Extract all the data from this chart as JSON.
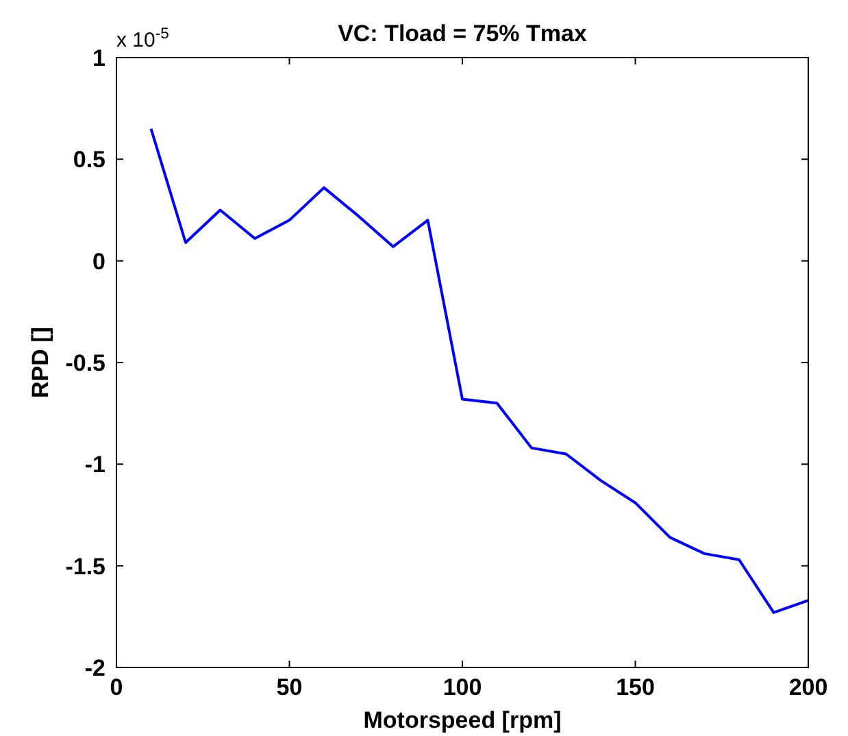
{
  "chart_data": {
    "type": "line",
    "title": "VC: Tload = 75% Tmax",
    "xlabel": "Motorspeed [rpm]",
    "ylabel": "RPD []",
    "annotations": [
      "x 10$^{-5}$"
    ],
    "x": [
      10,
      20,
      30,
      40,
      50,
      60,
      70,
      80,
      90,
      100,
      110,
      120,
      130,
      140,
      150,
      160,
      170,
      180,
      190,
      200
    ],
    "series": [
      {
        "color": "#0000ff",
        "values": [
          0.65,
          0.09,
          0.25,
          0.11,
          0.2,
          0.36,
          0.22,
          0.07,
          0.2,
          -0.68,
          -0.7,
          -0.92,
          -0.95,
          -1.08,
          -1.19,
          -1.36,
          -1.44,
          -1.47,
          -1.73,
          -1.67
        ]
      }
    ],
    "xlim": [
      0,
      200
    ],
    "xticks": [
      0,
      50,
      100,
      150,
      200
    ],
    "ylim": [
      -2,
      1
    ],
    "yticks": [
      -2,
      -1.5,
      -1,
      -0.5,
      0,
      0.5,
      1
    ],
    "grid": false,
    "marker": "none",
    "line_style": "solid"
  }
}
